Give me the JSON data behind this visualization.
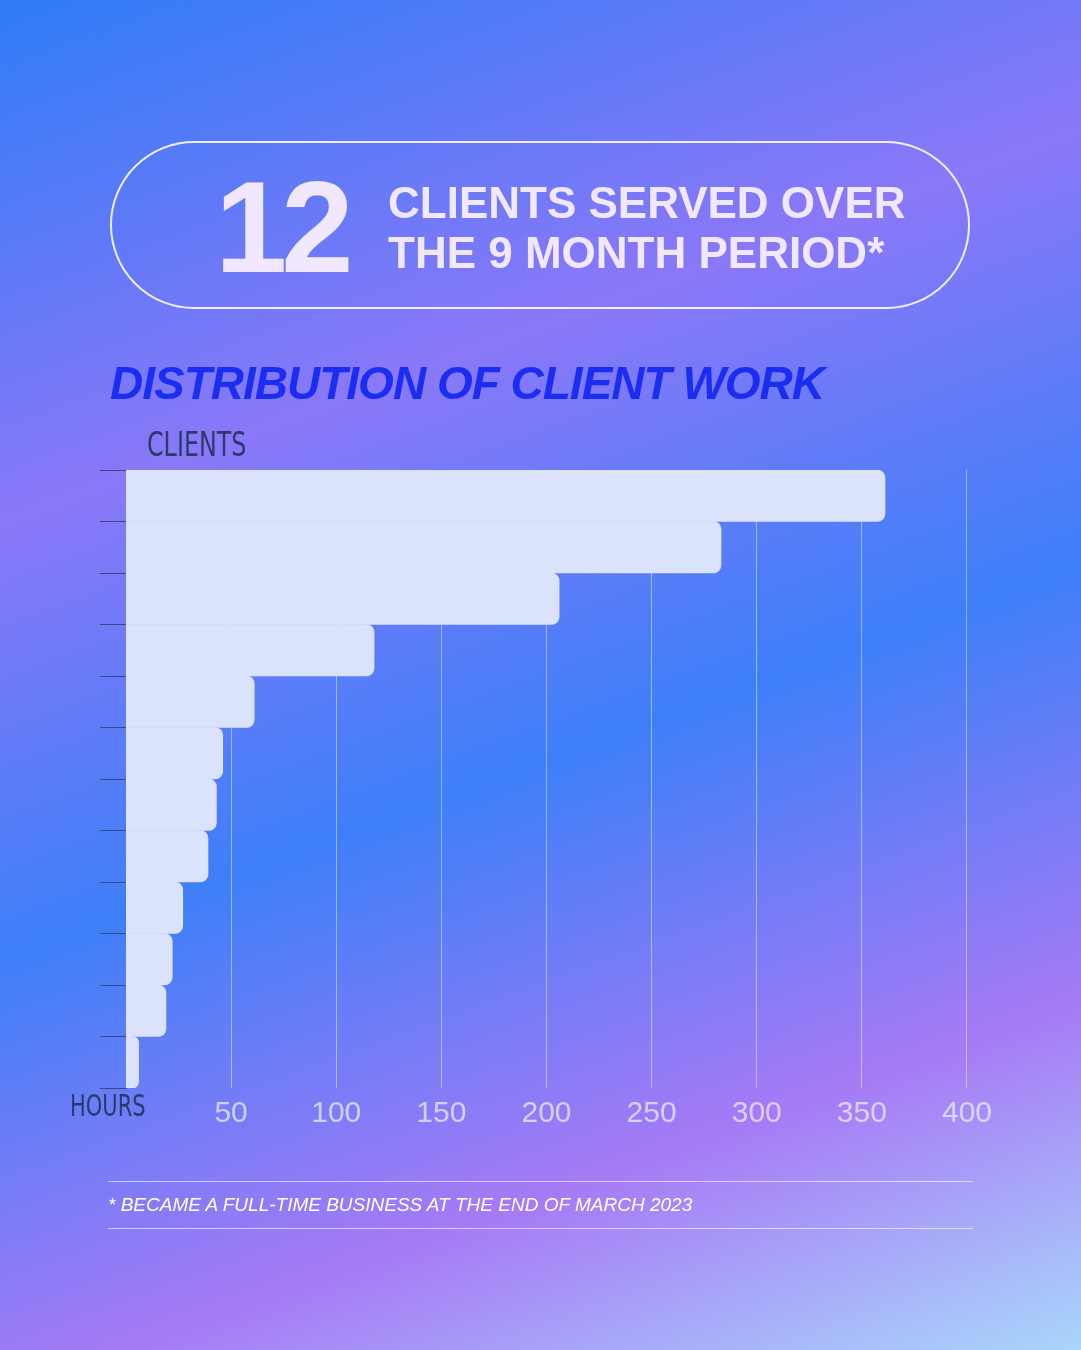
{
  "chart_data": {
    "type": "bar",
    "orientation": "horizontal",
    "title": "DISTRIBUTION OF CLIENT WORK",
    "ylabel": "CLIENTS",
    "xlabel": "HOURS",
    "annotations": [
      "12",
      "CLIENTS SERVED OVER THE 9 MONTH PERIOD*",
      "* BECAME A FULL-TIME BUSINESS AT THE END OF MARCH 2023"
    ],
    "categories": [
      null,
      null,
      null,
      null,
      null,
      null,
      null,
      null,
      null,
      null,
      null,
      null
    ],
    "values": [
      361,
      283,
      206,
      118,
      61,
      46,
      43,
      39,
      27,
      22,
      19,
      6
    ],
    "color": "#dbe2fc",
    "xlim": [
      0,
      400
    ],
    "xticks": [
      50,
      100,
      150,
      200,
      250,
      300,
      350,
      400
    ],
    "grid": "x",
    "legend": false
  }
}
